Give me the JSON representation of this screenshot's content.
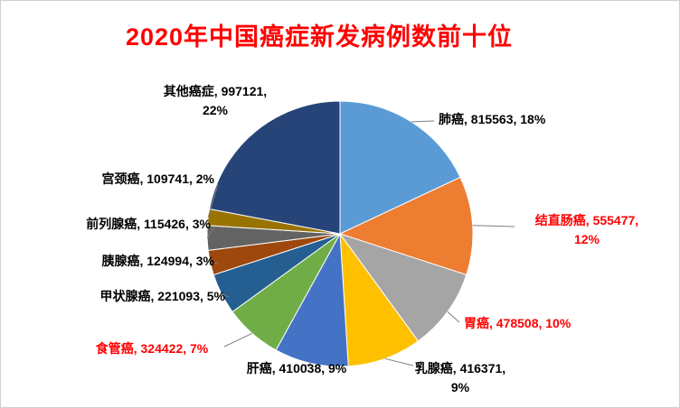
{
  "colors": {
    "title": "#FF0000",
    "highlight_label": "#FF0000",
    "default_label": "#000000",
    "leader_line": "#7F7F7F",
    "background": "#FFFFFF"
  },
  "chart_data": {
    "type": "pie",
    "title": "2020年中国癌症新发病例数前十位",
    "start_angle_deg": 0,
    "direction": "clockwise",
    "legend_position": "none",
    "label_format": "name, value, percent%",
    "slices": [
      {
        "label": "肺癌",
        "value": 815563,
        "percent": 18,
        "color": "#5B9BD5",
        "label_color": "#000000"
      },
      {
        "label": "结直肠癌",
        "value": 555477,
        "percent": 12,
        "color": "#ED7D31",
        "label_color": "#FF0000"
      },
      {
        "label": "胃癌",
        "value": 478508,
        "percent": 10,
        "color": "#A5A5A5",
        "label_color": "#FF0000"
      },
      {
        "label": "乳腺癌",
        "value": 416371,
        "percent": 9,
        "color": "#FFC000",
        "label_color": "#000000"
      },
      {
        "label": "肝癌",
        "value": 410038,
        "percent": 9,
        "color": "#4472C4",
        "label_color": "#000000"
      },
      {
        "label": "食管癌",
        "value": 324422,
        "percent": 7,
        "color": "#70AD47",
        "label_color": "#FF0000"
      },
      {
        "label": "甲状腺癌",
        "value": 221093,
        "percent": 5,
        "color": "#255E91",
        "label_color": "#000000"
      },
      {
        "label": "胰腺癌",
        "value": 124994,
        "percent": 3,
        "color": "#9E480E",
        "label_color": "#000000"
      },
      {
        "label": "前列腺癌",
        "value": 115426,
        "percent": 3,
        "color": "#636363",
        "label_color": "#000000"
      },
      {
        "label": "宫颈癌",
        "value": 109741,
        "percent": 2,
        "color": "#997300",
        "label_color": "#000000"
      },
      {
        "label": "其他癌症",
        "value": 997121,
        "percent": 22,
        "color": "#264478",
        "label_color": "#000000"
      }
    ]
  }
}
